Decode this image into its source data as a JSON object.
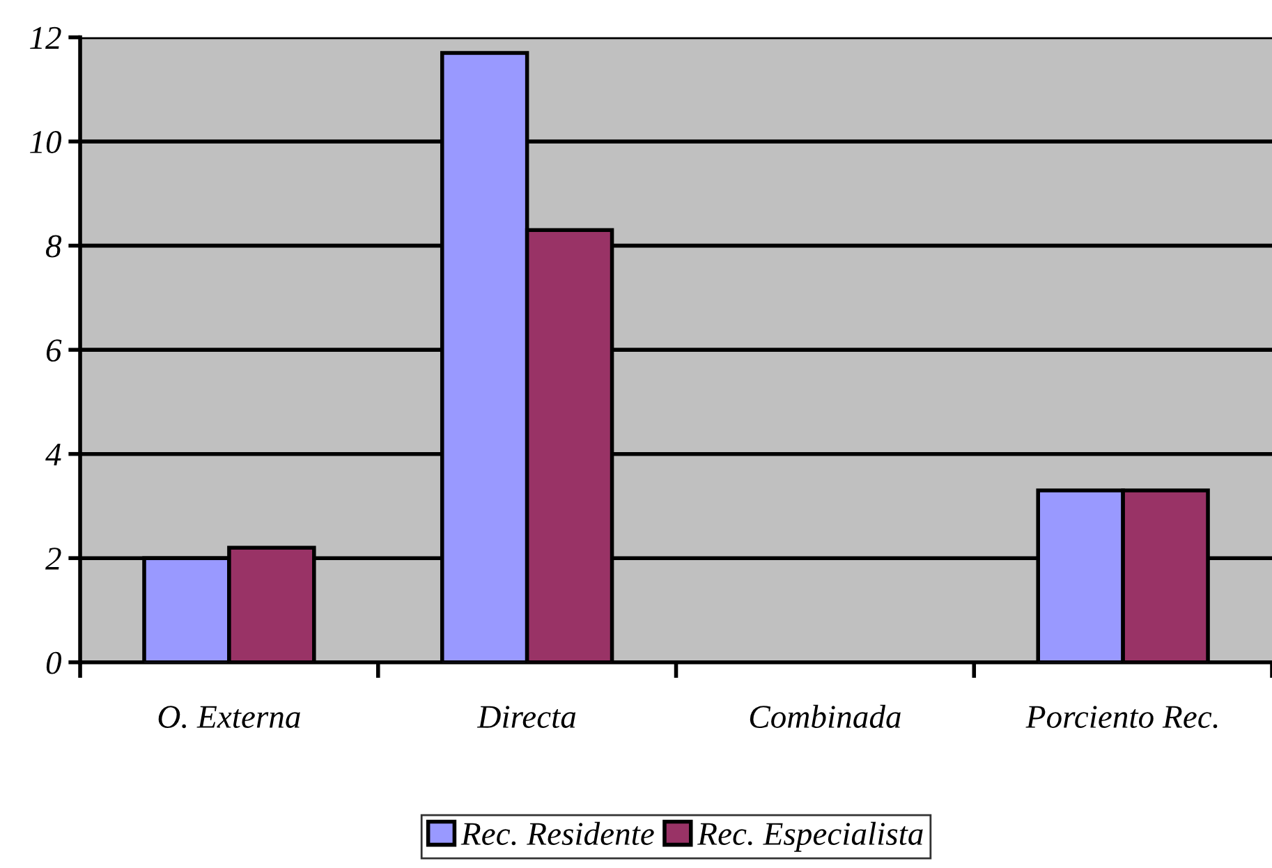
{
  "chart_data": {
    "type": "bar",
    "categories": [
      "O. Externa",
      "Directa",
      "Combinada",
      "Porciento Rec."
    ],
    "series": [
      {
        "name": "Rec. Residente",
        "color": "#9999ff",
        "values": [
          2.0,
          11.7,
          null,
          3.3
        ]
      },
      {
        "name": "Rec. Especialista",
        "color": "#993366",
        "values": [
          2.2,
          8.3,
          null,
          3.3
        ]
      }
    ],
    "ylim": [
      0,
      12
    ],
    "yticks": [
      0,
      2,
      4,
      6,
      8,
      10,
      12
    ],
    "grid": "y",
    "legend": "bottom"
  }
}
